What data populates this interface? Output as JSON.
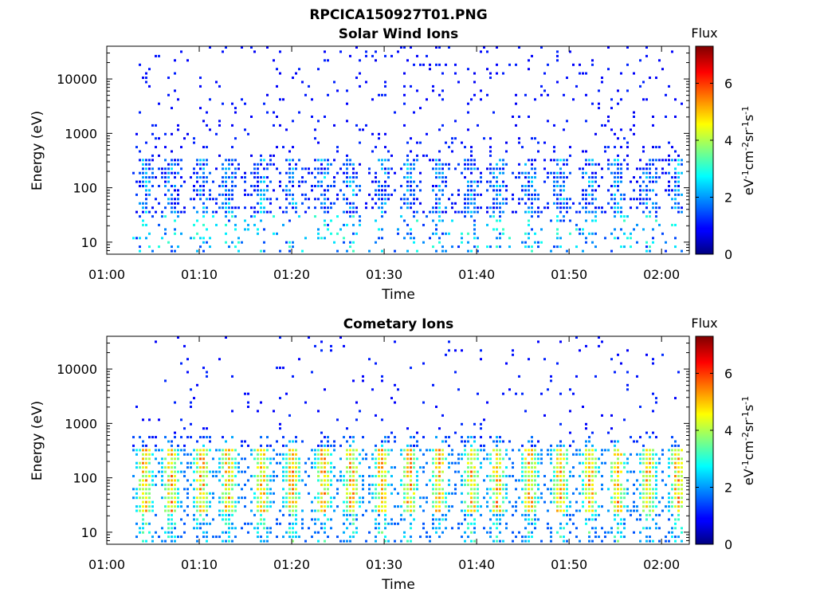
{
  "figure": {
    "title": "RPCICA150927T01.PNG"
  },
  "chart_data": [
    {
      "type": "heatmap",
      "title": "Solar Wind Ions",
      "xlabel": "Time",
      "ylabel": "Energy (eV)",
      "x_ticks": [
        "01:00",
        "01:10",
        "01:20",
        "01:30",
        "01:40",
        "01:50",
        "02:00"
      ],
      "x_range_minutes": [
        0,
        63
      ],
      "y_scale": "log",
      "y_ticks": [
        10,
        100,
        1000,
        10000
      ],
      "y_tick_labels": [
        "10",
        "100",
        "1000",
        "10000"
      ],
      "y_range": [
        6,
        40000
      ],
      "colorbar": {
        "title": "Flux",
        "unit": "eV⁻¹cm⁻²sr⁻¹s⁻¹",
        "ticks": [
          "0",
          "2",
          "4",
          "6"
        ],
        "range": [
          0,
          7.3
        ],
        "colormap": "jet"
      },
      "data_start_minutes": 2.5,
      "bursts_minutes": [
        4.2,
        7.0,
        10.3,
        13.2,
        16.8,
        20.1,
        23.5,
        26.5,
        29.8,
        32.8,
        36.0,
        39.5,
        42.3,
        45.8,
        49.1,
        52.3,
        55.3,
        58.6,
        61.8
      ],
      "core": {
        "energy_range_eV": [
          30,
          300
        ],
        "peak_flux": 2.2
      },
      "background_flux": 1.0
    },
    {
      "type": "heatmap",
      "title": "Cometary Ions",
      "xlabel": "Time",
      "ylabel": "Energy (eV)",
      "x_ticks": [
        "01:00",
        "01:10",
        "01:20",
        "01:30",
        "01:40",
        "01:50",
        "02:00"
      ],
      "x_range_minutes": [
        0,
        63
      ],
      "y_scale": "log",
      "y_ticks": [
        10,
        100,
        1000,
        10000
      ],
      "y_tick_labels": [
        "10",
        "100",
        "1000",
        "10000"
      ],
      "y_range": [
        6,
        40000
      ],
      "colorbar": {
        "title": "Flux",
        "unit": "eV⁻¹cm⁻²sr⁻¹s⁻¹",
        "ticks": [
          "0",
          "2",
          "4",
          "6"
        ],
        "range": [
          0,
          7.3
        ],
        "colormap": "jet"
      },
      "data_start_minutes": 2.5,
      "bursts_minutes": [
        4.2,
        7.0,
        10.3,
        13.2,
        16.8,
        20.1,
        23.5,
        26.5,
        29.8,
        32.8,
        36.0,
        39.5,
        42.3,
        45.8,
        49.1,
        52.3,
        55.3,
        58.6,
        61.8
      ],
      "core": {
        "energy_range_eV": [
          20,
          300
        ],
        "peak_flux": 5.2
      },
      "background_flux": 1.0
    }
  ]
}
